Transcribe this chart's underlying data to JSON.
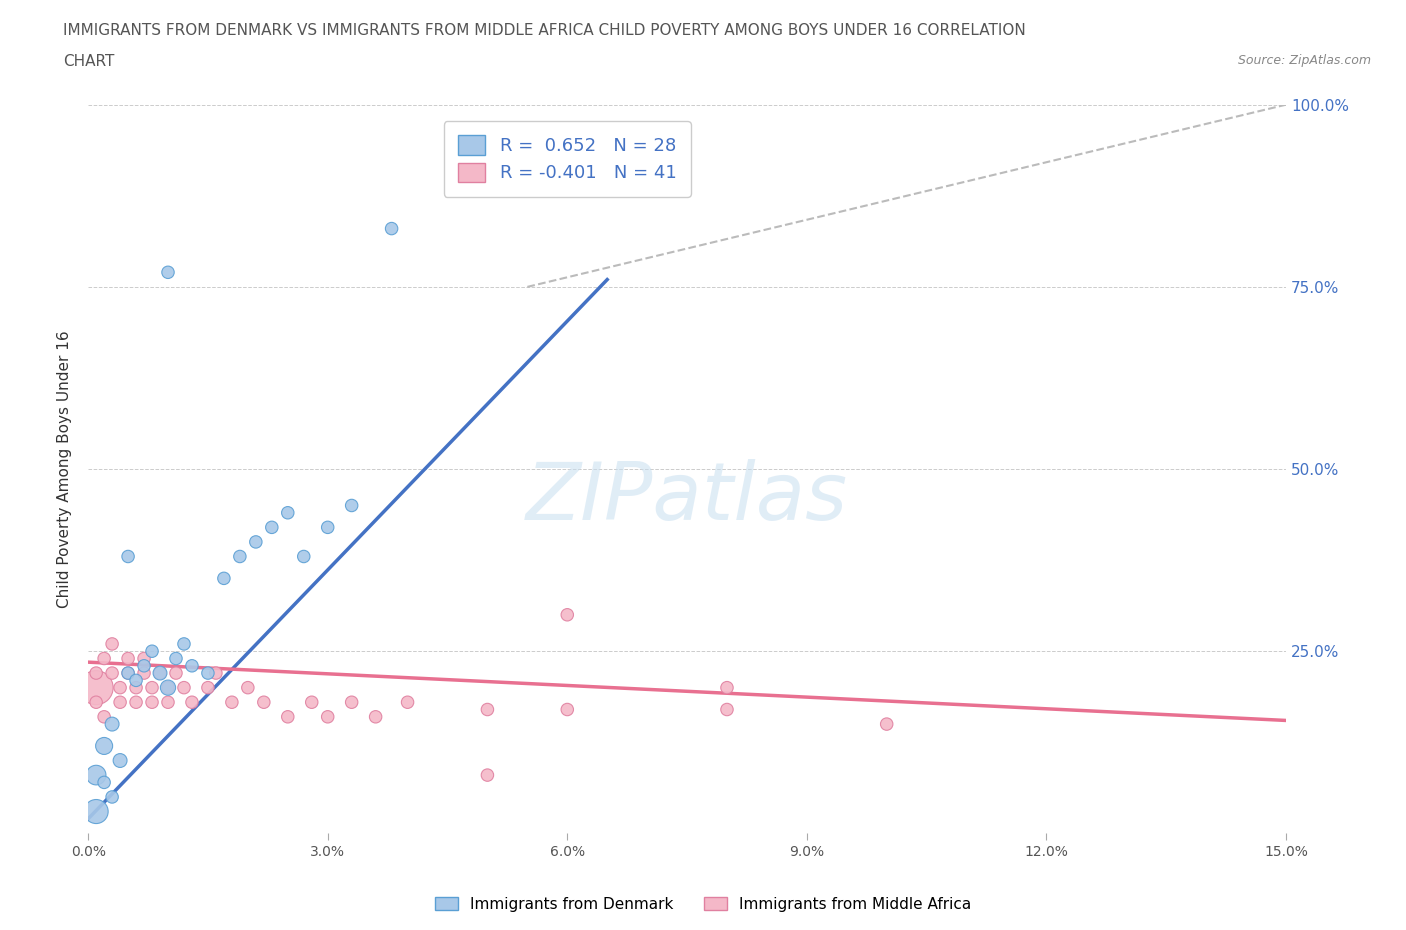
{
  "title_line1": "IMMIGRANTS FROM DENMARK VS IMMIGRANTS FROM MIDDLE AFRICA CHILD POVERTY AMONG BOYS UNDER 16 CORRELATION",
  "title_line2": "CHART",
  "source": "Source: ZipAtlas.com",
  "ylabel": "Child Poverty Among Boys Under 16",
  "xlim": [
    0.0,
    0.15
  ],
  "ylim": [
    0.0,
    1.0
  ],
  "xticks": [
    0.0,
    0.03,
    0.06,
    0.09,
    0.12,
    0.15
  ],
  "xticklabels": [
    "0.0%",
    "3.0%",
    "6.0%",
    "9.0%",
    "12.0%",
    "15.0%"
  ],
  "yticks": [
    0.0,
    0.25,
    0.5,
    0.75,
    1.0
  ],
  "yticklabels_right": [
    "",
    "25.0%",
    "50.0%",
    "75.0%",
    "100.0%"
  ],
  "grid_color": "#cccccc",
  "background_color": "#ffffff",
  "watermark": "ZIPatlas",
  "denmark_color": "#a8c8e8",
  "denmark_edge_color": "#5a9fd4",
  "denmark_line_color": "#4472c4",
  "middle_africa_color": "#f4b8c8",
  "middle_africa_edge_color": "#e080a0",
  "middle_africa_line_color": "#e87090",
  "R_denmark": 0.652,
  "N_denmark": 28,
  "R_middle_africa": -0.401,
  "N_middle_africa": 41,
  "denmark_scatter_x": [
    0.001,
    0.002,
    0.003,
    0.004,
    0.005,
    0.006,
    0.007,
    0.008,
    0.009,
    0.01,
    0.011,
    0.012,
    0.013,
    0.015,
    0.017,
    0.019,
    0.021,
    0.023,
    0.025,
    0.027,
    0.03,
    0.033,
    0.01,
    0.038,
    0.005,
    0.003,
    0.002,
    0.001
  ],
  "denmark_scatter_y": [
    0.08,
    0.12,
    0.15,
    0.1,
    0.22,
    0.21,
    0.23,
    0.25,
    0.22,
    0.2,
    0.24,
    0.26,
    0.23,
    0.22,
    0.35,
    0.38,
    0.4,
    0.42,
    0.44,
    0.38,
    0.42,
    0.45,
    0.77,
    0.83,
    0.38,
    0.05,
    0.07,
    0.03
  ],
  "denmark_scatter_sizes": [
    200,
    150,
    100,
    100,
    80,
    80,
    80,
    80,
    100,
    120,
    80,
    80,
    80,
    80,
    80,
    80,
    80,
    80,
    80,
    80,
    80,
    80,
    80,
    80,
    80,
    80,
    80,
    300
  ],
  "middle_africa_scatter_x": [
    0.001,
    0.001,
    0.001,
    0.002,
    0.002,
    0.003,
    0.003,
    0.004,
    0.004,
    0.005,
    0.005,
    0.006,
    0.006,
    0.007,
    0.007,
    0.008,
    0.008,
    0.009,
    0.01,
    0.01,
    0.011,
    0.012,
    0.013,
    0.015,
    0.016,
    0.018,
    0.02,
    0.022,
    0.025,
    0.028,
    0.03,
    0.033,
    0.036,
    0.04,
    0.06,
    0.06,
    0.08,
    0.08,
    0.05,
    0.05,
    0.1
  ],
  "middle_africa_scatter_y": [
    0.2,
    0.22,
    0.18,
    0.24,
    0.16,
    0.22,
    0.26,
    0.2,
    0.18,
    0.24,
    0.22,
    0.2,
    0.18,
    0.22,
    0.24,
    0.2,
    0.18,
    0.22,
    0.2,
    0.18,
    0.22,
    0.2,
    0.18,
    0.2,
    0.22,
    0.18,
    0.2,
    0.18,
    0.16,
    0.18,
    0.16,
    0.18,
    0.16,
    0.18,
    0.3,
    0.17,
    0.2,
    0.17,
    0.08,
    0.17,
    0.15
  ],
  "middle_africa_scatter_sizes": [
    600,
    80,
    80,
    80,
    80,
    80,
    80,
    80,
    80,
    80,
    80,
    80,
    80,
    80,
    80,
    80,
    80,
    80,
    80,
    80,
    80,
    80,
    80,
    80,
    80,
    80,
    80,
    80,
    80,
    80,
    80,
    80,
    80,
    80,
    80,
    80,
    80,
    80,
    80,
    80,
    80
  ],
  "denmark_trend_x": [
    0.0,
    0.065
  ],
  "denmark_trend_y": [
    0.02,
    0.76
  ],
  "middle_africa_trend_x": [
    0.0,
    0.15
  ],
  "middle_africa_trend_y": [
    0.235,
    0.155
  ],
  "diag_line_x": [
    0.055,
    0.15
  ],
  "diag_line_y": [
    0.75,
    1.0
  ]
}
